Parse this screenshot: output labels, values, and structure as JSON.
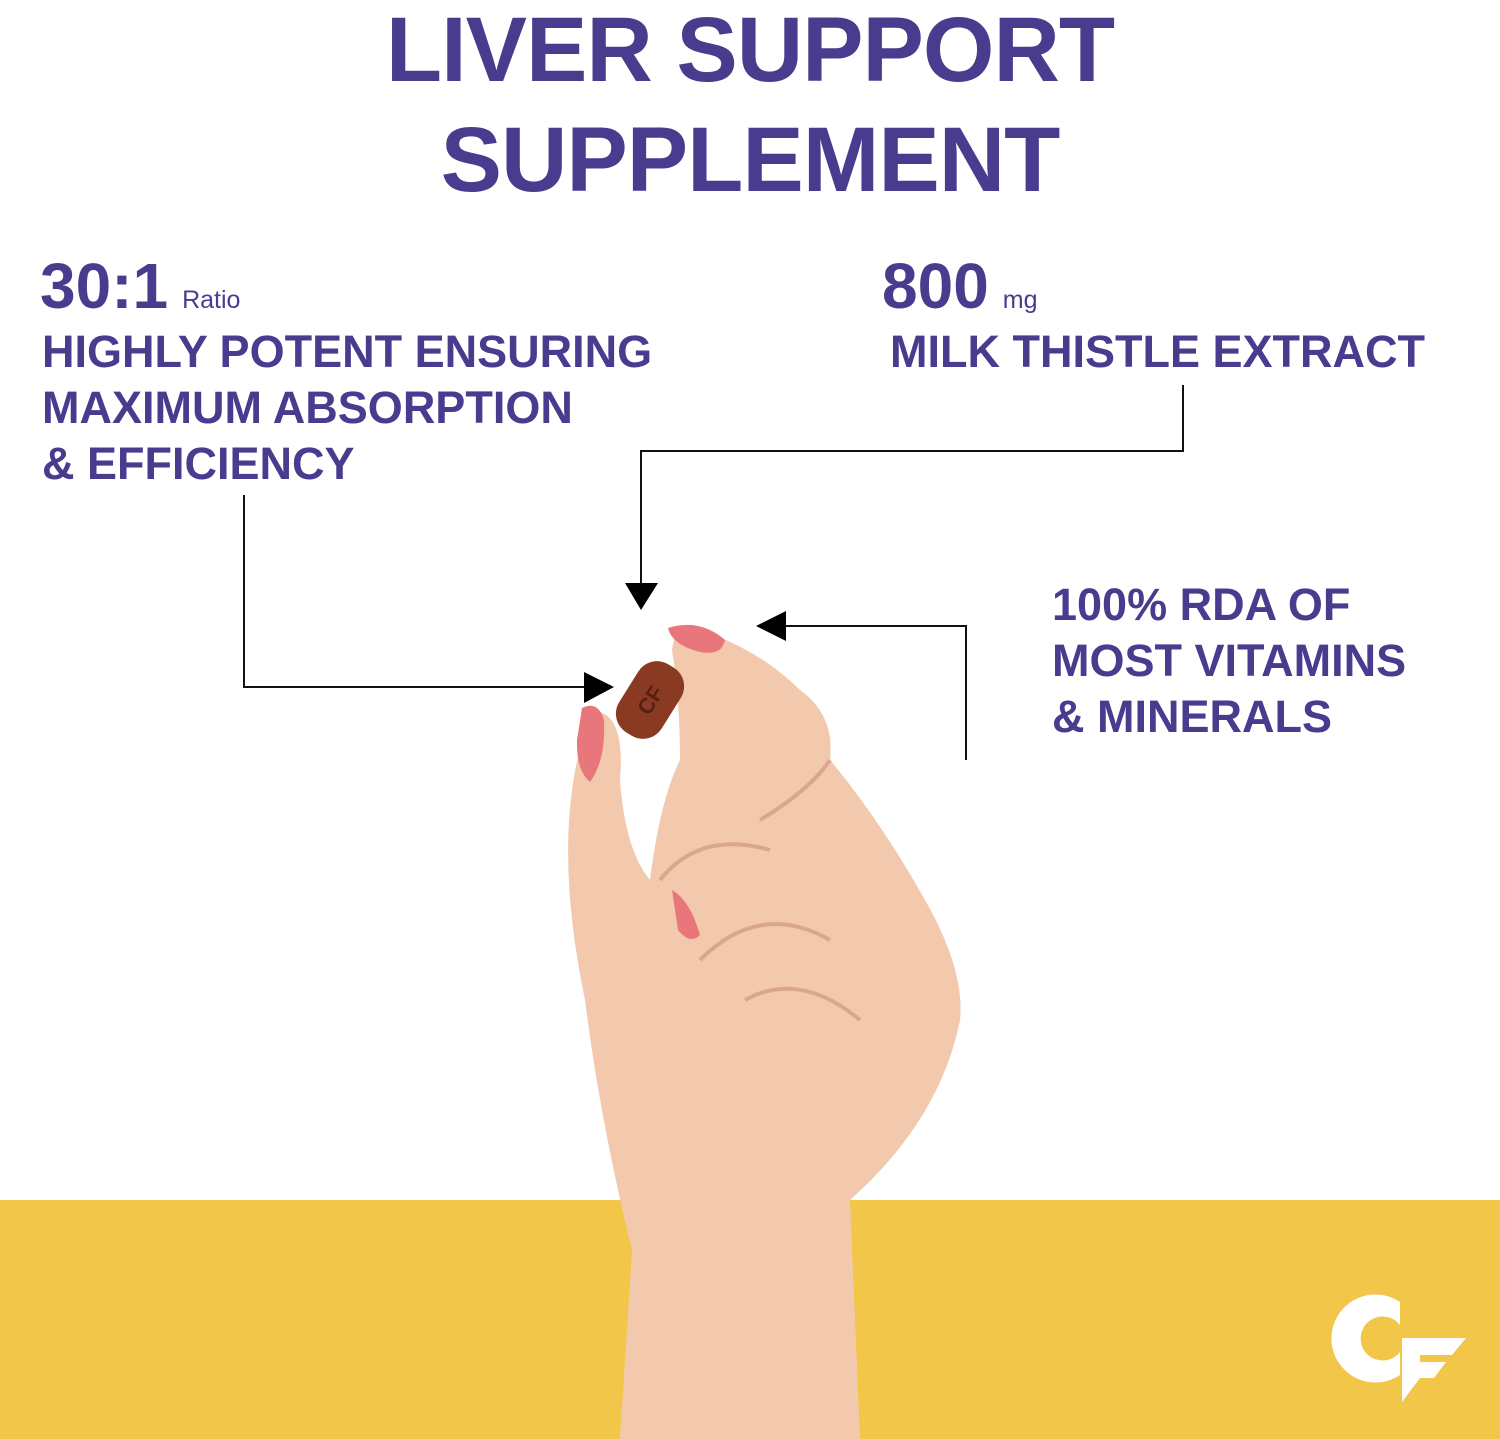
{
  "header": {
    "title_line1": "LIVER SUPPORT",
    "title_line2": "SUPPLEMENT"
  },
  "callouts": {
    "ratio": {
      "value": "30:1",
      "unit": "Ratio",
      "lines": [
        "HIGHLY POTENT ENSURING",
        "MAXIMUM ABSORPTION",
        "& EFFICIENCY"
      ]
    },
    "dose": {
      "value": "800",
      "unit": "mg",
      "lines": [
        "MILK THISTLE EXTRACT"
      ]
    },
    "rda": {
      "lines": [
        "100% RDA OF",
        "MOST VITAMINS",
        "& MINERALS"
      ]
    }
  },
  "brand": {
    "logo_text": "CF"
  },
  "colors": {
    "accent": "#4a3b8f",
    "band": "#f2c648",
    "tablet": "#8a3a22",
    "skin": "#f0c5a8",
    "nail": "#e8767a"
  }
}
